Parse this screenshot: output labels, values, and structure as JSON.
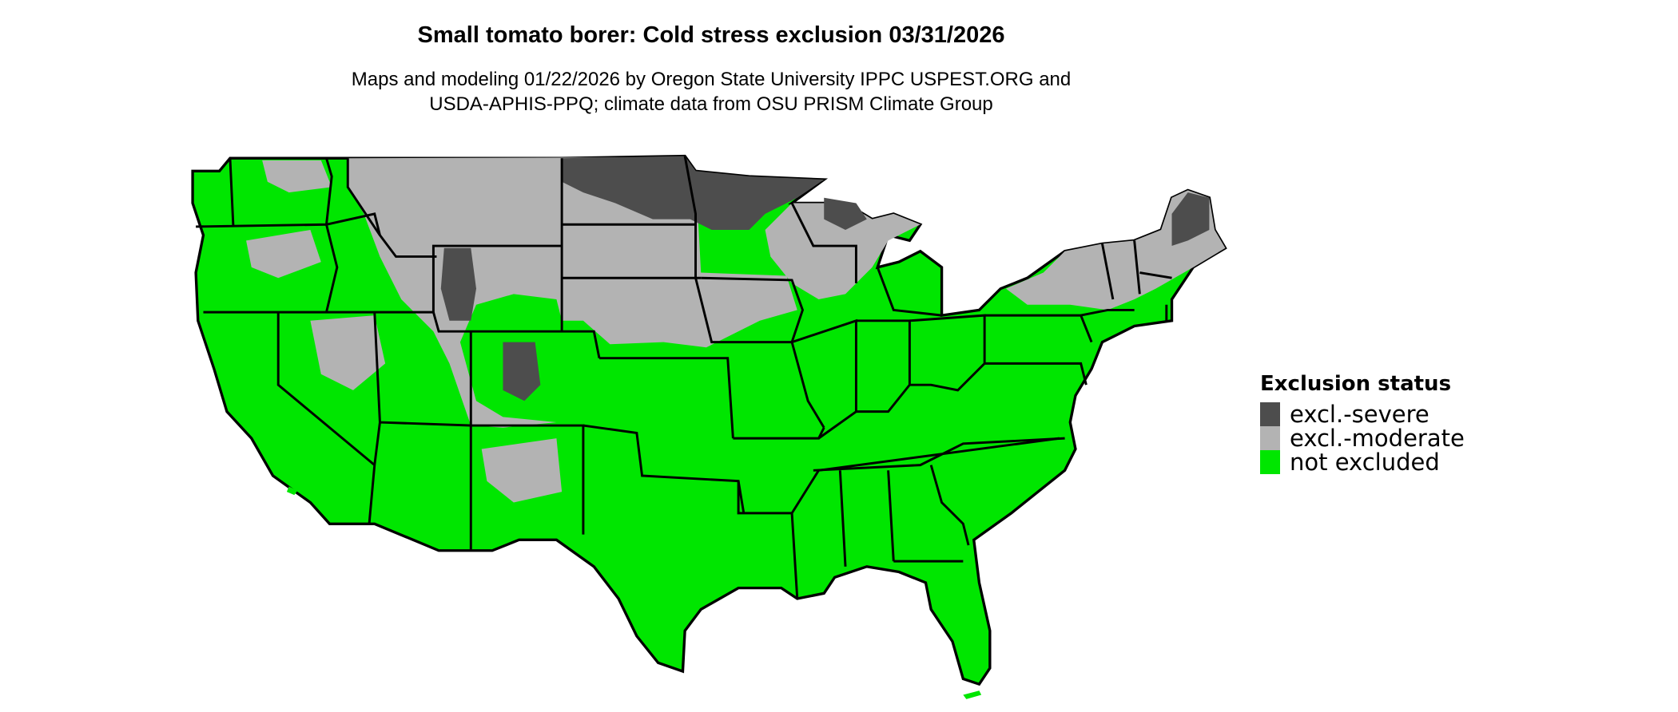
{
  "title": "Small tomato borer: Cold stress exclusion 03/31/2026",
  "subtitle_line1": "Maps and modeling 01/22/2026 by Oregon State University IPPC USPEST.ORG and",
  "subtitle_line2": "USDA-APHIS-PPQ; climate data from OSU PRISM Climate Group",
  "legend": {
    "title": "Exclusion status",
    "items": [
      {
        "label": "excl.-severe",
        "color": "#4d4d4d"
      },
      {
        "label": "excl.-moderate",
        "color": "#b3b3b3"
      },
      {
        "label": "not excluded",
        "color": "#00e600"
      }
    ]
  },
  "map": {
    "region": "Contiguous United States",
    "boundaries": "state borders",
    "border_color": "#000000"
  }
}
